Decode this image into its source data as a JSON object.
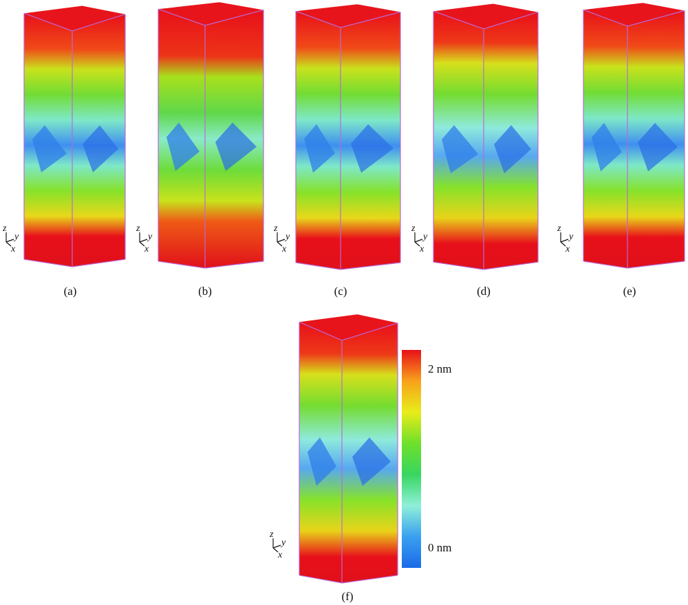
{
  "panels": [
    {
      "label": "(a)"
    },
    {
      "label": "(b)"
    },
    {
      "label": "(c)"
    },
    {
      "label": "(d)"
    },
    {
      "label": "(e)"
    },
    {
      "label": "(f)"
    }
  ],
  "axes_triad": {
    "z": "z",
    "y": "y",
    "x": "x"
  },
  "colorbar": {
    "max_label": "2 nm",
    "min_label": "0 nm",
    "colors": [
      "#e8101a",
      "#f7a21a",
      "#e8ec1a",
      "#6ee02a",
      "#37d660",
      "#8ff0d8",
      "#3aa0f0",
      "#1a6ae8"
    ]
  }
}
